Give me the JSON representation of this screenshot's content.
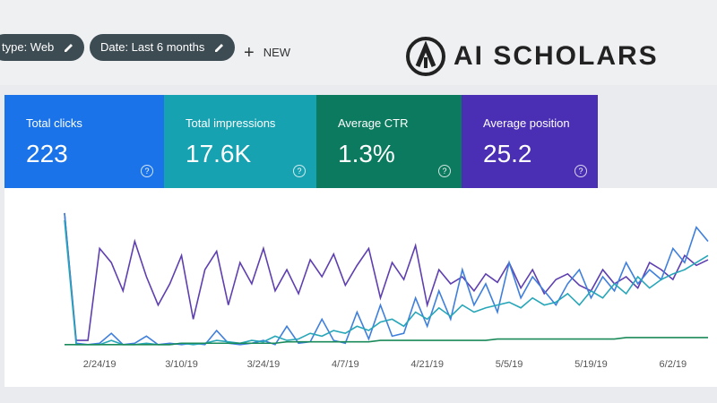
{
  "toolbar": {
    "filters": [
      "type: Web",
      "Date: Last 6 months"
    ],
    "new_button": "NEW"
  },
  "logo": "AI SCHOLARS",
  "cards": [
    {
      "label": "Total clicks",
      "value": "223",
      "color": "#1a73e8"
    },
    {
      "label": "Total impressions",
      "value": "17.6K",
      "color": "#17a2b1"
    },
    {
      "label": "Average CTR",
      "value": "1.3%",
      "color": "#0b7a5e"
    },
    {
      "label": "Average position",
      "value": "25.2",
      "color": "#4a2fb5"
    }
  ],
  "chart_data": {
    "type": "line",
    "categories": [
      null,
      null,
      null,
      "2/24/19",
      null,
      null,
      null,
      null,
      null,
      null,
      "3/10/19",
      null,
      null,
      null,
      null,
      null,
      null,
      "3/24/19",
      null,
      null,
      null,
      null,
      null,
      null,
      "4/7/19",
      null,
      null,
      null,
      null,
      null,
      null,
      "4/21/19",
      null,
      null,
      null,
      null,
      null,
      null,
      "5/5/19",
      null,
      null,
      null,
      null,
      null,
      null,
      "5/19/19",
      null,
      null,
      null,
      null,
      null,
      null,
      "6/2/19",
      null,
      null,
      null
    ],
    "ylim": [
      0,
      100
    ],
    "series": [
      {
        "color": "#5e3fb0",
        "values": [
          95,
          5,
          5,
          70,
          60,
          40,
          75,
          50,
          30,
          45,
          65,
          20,
          55,
          68,
          30,
          60,
          45,
          70,
          40,
          55,
          38,
          62,
          50,
          66,
          44,
          58,
          70,
          35,
          60,
          48,
          72,
          30,
          55,
          45,
          50,
          40,
          52,
          46,
          60,
          42,
          55,
          38,
          48,
          52,
          44,
          40,
          55,
          45,
          50,
          42,
          60,
          55,
          48,
          65,
          58,
          62
        ]
      },
      {
        "color": "#3f7fdc",
        "values": [
          95,
          3,
          2,
          3,
          10,
          2,
          3,
          8,
          2,
          3,
          2,
          3,
          2,
          12,
          3,
          2,
          3,
          5,
          2,
          15,
          3,
          4,
          20,
          5,
          3,
          25,
          6,
          30,
          8,
          10,
          35,
          15,
          40,
          20,
          55,
          30,
          45,
          25,
          60,
          35,
          50,
          40,
          30,
          45,
          55,
          35,
          50,
          40,
          60,
          45,
          55,
          48,
          70,
          60,
          85,
          75
        ]
      },
      {
        "color": "#26a6b8",
        "values": [
          90,
          2,
          2,
          2,
          5,
          2,
          2,
          3,
          2,
          2,
          3,
          2,
          3,
          5,
          4,
          3,
          5,
          4,
          8,
          5,
          6,
          10,
          8,
          12,
          10,
          15,
          12,
          18,
          20,
          15,
          25,
          20,
          28,
          22,
          30,
          25,
          28,
          30,
          32,
          28,
          35,
          30,
          32,
          38,
          30,
          40,
          35,
          45,
          38,
          50,
          42,
          48,
          52,
          55,
          60,
          65
        ]
      },
      {
        "color": "#1b8a5a",
        "values": [
          2,
          2,
          2,
          2,
          2,
          2,
          2,
          2,
          2,
          2,
          3,
          3,
          3,
          3,
          3,
          3,
          3,
          3,
          3,
          4,
          4,
          4,
          4,
          4,
          4,
          4,
          4,
          5,
          5,
          5,
          5,
          5,
          5,
          5,
          5,
          5,
          5,
          6,
          6,
          6,
          6,
          6,
          6,
          6,
          6,
          6,
          6,
          6,
          7,
          7,
          7,
          7,
          7,
          7,
          7,
          7
        ]
      }
    ]
  }
}
